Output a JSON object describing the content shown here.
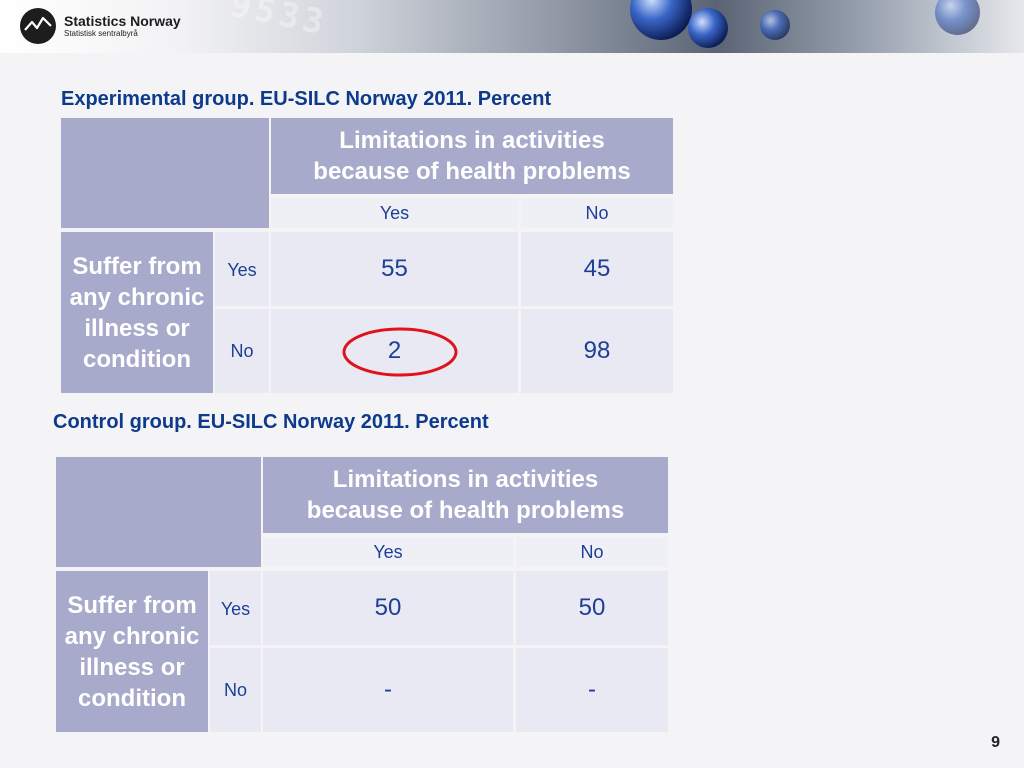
{
  "brand": {
    "name": "Statistics Norway",
    "subname": "Statistisk sentralbyrå"
  },
  "banner_numbers": "9533",
  "tables": [
    {
      "caption": "Experimental group. EU-SILC Norway 2011. Percent",
      "col_header": "Limitations in activities because of health problems",
      "col_yes": "Yes",
      "col_no": "No",
      "row_header": "Suffer from any chronic illness or condition",
      "row_yes": "Yes",
      "row_no": "No",
      "yes_yes": "55",
      "yes_no": "45",
      "no_yes": "2",
      "no_no": "98"
    },
    {
      "caption": "Control group. EU-SILC Norway 2011. Percent",
      "col_header": "Limitations in activities because of health problems",
      "col_yes": "Yes",
      "col_no": "No",
      "row_header": "Suffer from any chronic illness or condition",
      "row_yes": "Yes",
      "row_no": "No",
      "yes_yes": "50",
      "yes_no": "50",
      "no_yes": "-",
      "no_no": "-"
    }
  ],
  "highlight_color": "#e0121b",
  "page_number": "9"
}
